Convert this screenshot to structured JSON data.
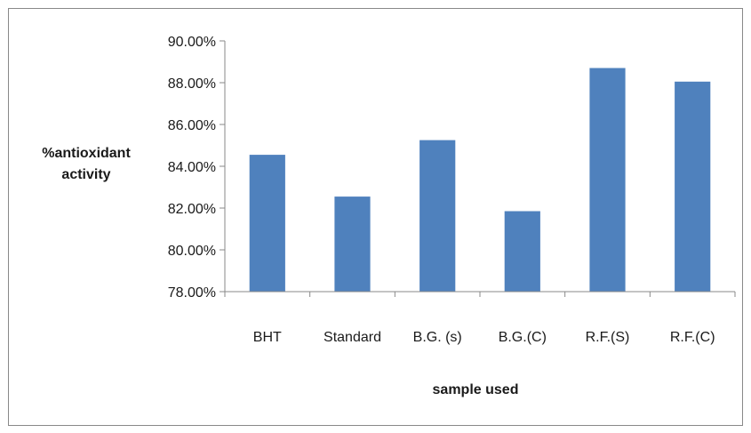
{
  "chart_data": {
    "type": "bar",
    "categories": [
      "BHT",
      "Standard",
      "B.G. (s)",
      "B.G.(C)",
      "R.F.(S)",
      "R.F.(C)"
    ],
    "values": [
      84.55,
      82.55,
      85.25,
      81.85,
      88.7,
      88.05
    ],
    "ylim": [
      78,
      90
    ],
    "ytick_step": 2,
    "ytick_labels": [
      "78.00%",
      "80.00%",
      "82.00%",
      "84.00%",
      "86.00%",
      "88.00%",
      "90.00%"
    ],
    "ylabel_lines": [
      "%antioxidant",
      "activity"
    ],
    "xlabel": "sample used",
    "title": "",
    "grid": false,
    "legend": "none",
    "bar_color": "#4f81bd",
    "axis_color": "#898989"
  }
}
